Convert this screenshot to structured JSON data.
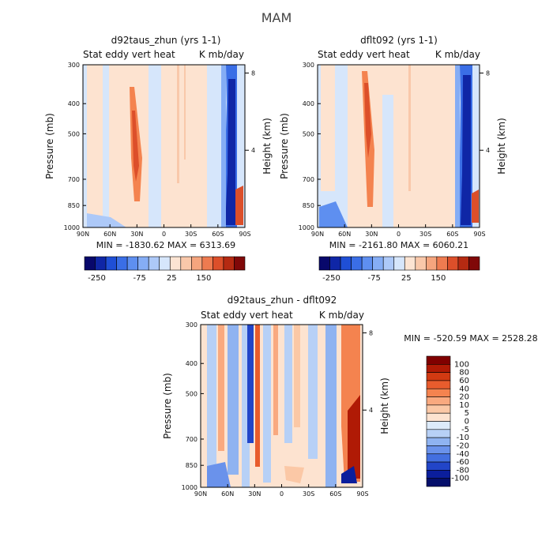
{
  "figure_title": "MAM",
  "chart_data": [
    {
      "type": "heatmap",
      "title": "d92taus_zhun (yrs 1-1)",
      "subtitle_left": "Stat eddy vert heat",
      "subtitle_right": "K mb/day",
      "xlabel": "",
      "ylabel": "Pressure (mb)",
      "y2label": "Height (km)",
      "x_ticks": [
        "90N",
        "60N",
        "30N",
        "0",
        "30S",
        "60S",
        "90S"
      ],
      "y_ticks": [
        "300",
        "400",
        "500",
        "700",
        "850",
        "1000"
      ],
      "y_tick_values": [
        300,
        400,
        500,
        700,
        850,
        1000
      ],
      "y2_ticks": [
        "8",
        "4"
      ],
      "y2_tick_values": [
        8,
        4
      ],
      "xlim": [
        90,
        -90
      ],
      "ylim": [
        1000,
        300
      ],
      "y_scale": "log",
      "stats": "MIN = -1830.62   MAX = 6313.69",
      "colorbar_labels": [
        "-250",
        "-75",
        "25",
        "150"
      ]
    },
    {
      "type": "heatmap",
      "title": "dflt092 (yrs 1-1)",
      "subtitle_left": "Stat eddy vert heat",
      "subtitle_right": "K mb/day",
      "xlabel": "",
      "ylabel": "Pressure (mb)",
      "y2label": "Height (km)",
      "x_ticks": [
        "90N",
        "60N",
        "30N",
        "0",
        "30S",
        "60S",
        "90S"
      ],
      "y_ticks": [
        "300",
        "400",
        "500",
        "700",
        "850",
        "1000"
      ],
      "y_tick_values": [
        300,
        400,
        500,
        700,
        850,
        1000
      ],
      "y2_ticks": [
        "8",
        "4"
      ],
      "y2_tick_values": [
        8,
        4
      ],
      "xlim": [
        90,
        -90
      ],
      "ylim": [
        1000,
        300
      ],
      "y_scale": "log",
      "stats": "MIN = -2161.80   MAX = 6060.21",
      "colorbar_labels": [
        "-250",
        "-75",
        "25",
        "150"
      ]
    },
    {
      "type": "heatmap",
      "title": "d92taus_zhun - dflt092",
      "subtitle_left": "Stat eddy vert heat",
      "subtitle_right": "K mb/day",
      "xlabel": "",
      "ylabel": "Pressure (mb)",
      "y2label": "Height (km)",
      "x_ticks": [
        "90N",
        "60N",
        "30N",
        "0",
        "30S",
        "60S",
        "90S"
      ],
      "y_ticks": [
        "300",
        "400",
        "500",
        "700",
        "850",
        "1000"
      ],
      "y_tick_values": [
        300,
        400,
        500,
        700,
        850,
        1000
      ],
      "y2_ticks": [
        "8",
        "4"
      ],
      "y2_tick_values": [
        8,
        4
      ],
      "xlim": [
        90,
        -90
      ],
      "ylim": [
        1000,
        300
      ],
      "y_scale": "log",
      "stats": "MIN = -520.59   MAX = 2528.28",
      "colorbar_labels": [
        "100",
        "80",
        "60",
        "40",
        "20",
        "10",
        "5",
        "0",
        "-5",
        "-10",
        "-20",
        "-40",
        "-60",
        "-80",
        "-100"
      ]
    }
  ],
  "colorbar_top_colors": [
    "#08086b",
    "#0f26a6",
    "#1f4fd6",
    "#3a6ee6",
    "#5e8ff0",
    "#85adf5",
    "#adc9f8",
    "#d6e6fb",
    "#fce4d3",
    "#f9c8aa",
    "#f5a57e",
    "#ee7b50",
    "#dc4f2a",
    "#b52a12",
    "#800808"
  ],
  "colorbar_diff_colors": [
    "#800000",
    "#b01a05",
    "#d23a12",
    "#e85c2d",
    "#f4834f",
    "#f9a97f",
    "#fbc8a6",
    "#fde3d0",
    "#ddebfa",
    "#b7d0f6",
    "#8fb3f1",
    "#6a92eb",
    "#436fe0",
    "#2245c8",
    "#0b1e9c",
    "#050f6b"
  ],
  "colors": {
    "background": "#ffffff",
    "light_blue": "#d6e6fb",
    "light_orange": "#fde3d0"
  }
}
